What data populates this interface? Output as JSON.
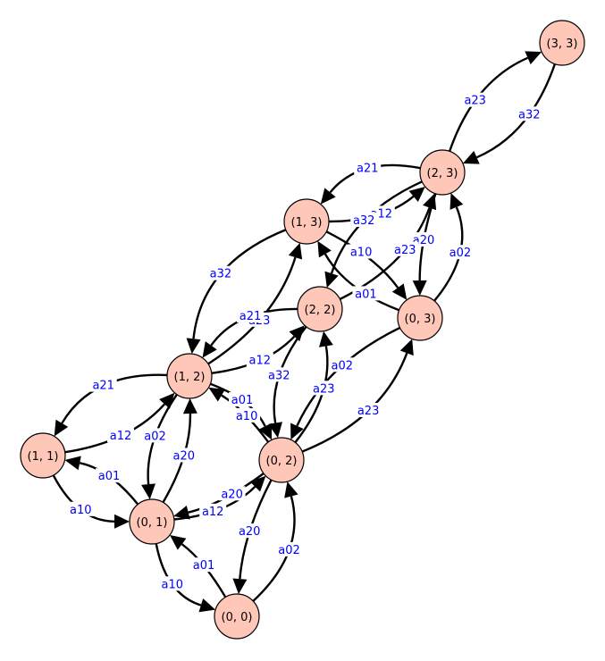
{
  "colors": {
    "node_fill": "#ffc7b8",
    "node_stroke": "#000000",
    "edge": "#000000",
    "label": "#0000ff",
    "background": "#ffffff"
  },
  "nodes": [
    {
      "id": "n33",
      "label": "(3, 3)"
    },
    {
      "id": "n23",
      "label": "(2, 3)"
    },
    {
      "id": "n13",
      "label": "(1, 3)"
    },
    {
      "id": "n22",
      "label": "(2, 2)"
    },
    {
      "id": "n03",
      "label": "(0, 3)"
    },
    {
      "id": "n12",
      "label": "(1, 2)"
    },
    {
      "id": "n11",
      "label": "(1, 1)"
    },
    {
      "id": "n02",
      "label": "(0, 2)"
    },
    {
      "id": "n01",
      "label": "(0, 1)"
    },
    {
      "id": "n00",
      "label": "(0, 0)"
    }
  ],
  "edges": [
    {
      "id": "e1",
      "from": "n23",
      "to": "n33",
      "label": "a23"
    },
    {
      "id": "e2",
      "from": "n33",
      "to": "n23",
      "label": "a32"
    },
    {
      "id": "e3",
      "from": "n23",
      "to": "n13",
      "label": "a21"
    },
    {
      "id": "e4",
      "from": "n13",
      "to": "n23",
      "label": "a12"
    },
    {
      "id": "e5",
      "from": "n03",
      "to": "n23",
      "label": "a02"
    },
    {
      "id": "e6",
      "from": "n23",
      "to": "n03",
      "label": "a20"
    },
    {
      "id": "e7",
      "from": "n22",
      "to": "n23",
      "label": "a23"
    },
    {
      "id": "e8",
      "from": "n23",
      "to": "n22",
      "label": "a32"
    },
    {
      "id": "e9",
      "from": "n03",
      "to": "n13",
      "label": "a01"
    },
    {
      "id": "e10",
      "from": "n13",
      "to": "n03",
      "label": "a10"
    },
    {
      "id": "e11",
      "from": "n13",
      "to": "n12",
      "label": "a32"
    },
    {
      "id": "e12",
      "from": "n12",
      "to": "n13",
      "label": "a23"
    },
    {
      "id": "e13",
      "from": "n22",
      "to": "n12",
      "label": "a21"
    },
    {
      "id": "e14",
      "from": "n12",
      "to": "n22",
      "label": "a12"
    },
    {
      "id": "e15",
      "from": "n22",
      "to": "n02",
      "label": "a32"
    },
    {
      "id": "e16",
      "from": "n02",
      "to": "n22",
      "label": "a23"
    },
    {
      "id": "e17",
      "from": "n02",
      "to": "n03",
      "label": "a23"
    },
    {
      "id": "e18",
      "from": "n03",
      "to": "n02",
      "label": "a02"
    },
    {
      "id": "e19",
      "from": "n12",
      "to": "n11",
      "label": "a21"
    },
    {
      "id": "e20",
      "from": "n11",
      "to": "n12",
      "label": "a12"
    },
    {
      "id": "e21",
      "from": "n12",
      "to": "n02",
      "label": "a01"
    },
    {
      "id": "e22",
      "from": "n02",
      "to": "n12",
      "label": "a10"
    },
    {
      "id": "e23",
      "from": "n12",
      "to": "n01",
      "label": "a02"
    },
    {
      "id": "e24",
      "from": "n01",
      "to": "n12",
      "label": "a20"
    },
    {
      "id": "e25",
      "from": "n11",
      "to": "n01",
      "label": "a10"
    },
    {
      "id": "e26",
      "from": "n01",
      "to": "n11",
      "label": "a01"
    },
    {
      "id": "e27",
      "from": "n01",
      "to": "n02",
      "label": "a12"
    },
    {
      "id": "e28",
      "from": "n02",
      "to": "n01",
      "label": "a20"
    },
    {
      "id": "e29",
      "from": "n01",
      "to": "n00",
      "label": "a10"
    },
    {
      "id": "e30",
      "from": "n00",
      "to": "n01",
      "label": "a01"
    },
    {
      "id": "e31",
      "from": "n00",
      "to": "n02",
      "label": "a02"
    },
    {
      "id": "e32",
      "from": "n02",
      "to": "n00",
      "label": "a20"
    }
  ]
}
